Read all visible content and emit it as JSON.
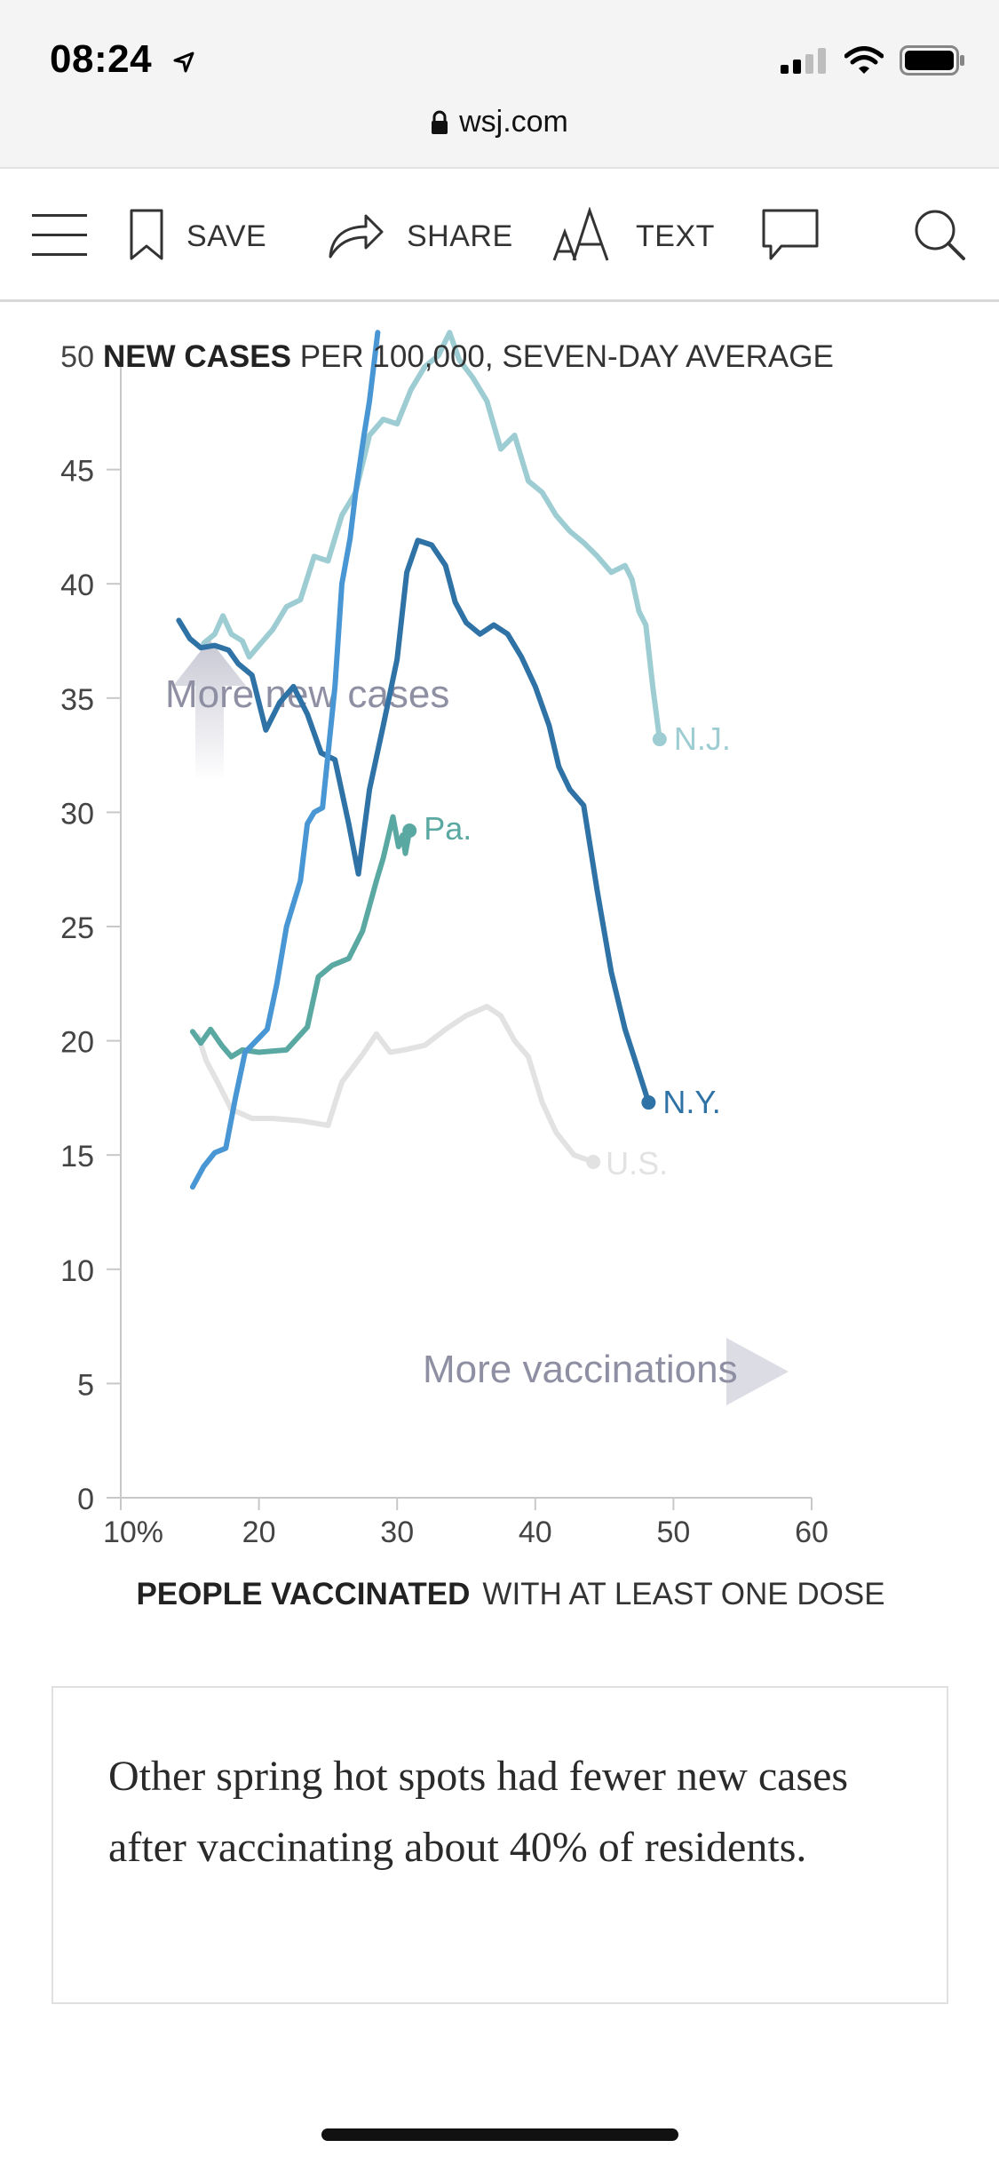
{
  "status_bar": {
    "time": "08:24",
    "icons": [
      "location-arrow-icon",
      "signal-icon",
      "wifi-icon",
      "battery-icon"
    ]
  },
  "url_bar": {
    "domain": "wsj.com",
    "icon": "lock-icon"
  },
  "toolbar": {
    "menu_icon": "hamburger-menu-icon",
    "save_label": "SAVE",
    "share_label": "SHARE",
    "text_label": "TEXT",
    "comment_icon": "comment-icon",
    "search_icon": "search-icon"
  },
  "chart_data": {
    "type": "line",
    "title_bold": "NEW CASES",
    "title_rest": " PER 100,000, SEVEN-DAY AVERAGE",
    "xlabel_bold": "PEOPLE VACCINATED",
    "xlabel_rest": "WITH AT LEAST ONE DOSE",
    "xlim": [
      10,
      60
    ],
    "ylim": [
      0,
      50
    ],
    "x_ticks": [
      "10%",
      "20",
      "30",
      "40",
      "50",
      "60"
    ],
    "x_tick_values": [
      10,
      20,
      30,
      40,
      50,
      60
    ],
    "y_ticks": [
      "0",
      "5",
      "10",
      "15",
      "20",
      "25",
      "30",
      "35",
      "40",
      "45",
      "50"
    ],
    "y_tick_values": [
      0,
      5,
      10,
      15,
      20,
      25,
      30,
      35,
      40,
      45,
      50
    ],
    "grid": false,
    "annotations": {
      "more_cases": "More new cases",
      "more_vaccinations": "More vaccinations"
    },
    "series": [
      {
        "name": "U.S.",
        "color": "#e2e2e2",
        "endpoint": true,
        "points": [
          [
            15.6,
            20.2
          ],
          [
            16.2,
            19.1
          ],
          [
            17,
            18.2
          ],
          [
            18,
            17.0
          ],
          [
            19.5,
            16.6
          ],
          [
            21,
            16.6
          ],
          [
            23,
            16.5
          ],
          [
            25,
            16.3
          ],
          [
            26,
            18.2
          ],
          [
            27.5,
            19.4
          ],
          [
            28.5,
            20.3
          ],
          [
            29.5,
            19.5
          ],
          [
            30.5,
            19.6
          ],
          [
            32,
            19.8
          ],
          [
            33.5,
            20.5
          ],
          [
            35,
            21.1
          ],
          [
            36.5,
            21.5
          ],
          [
            37.5,
            21.1
          ],
          [
            38.5,
            20.0
          ],
          [
            39.5,
            19.3
          ],
          [
            40.5,
            17.3
          ],
          [
            41.5,
            16.0
          ],
          [
            42.8,
            15.0
          ],
          [
            44.2,
            14.7
          ]
        ]
      },
      {
        "name": "Pa.",
        "color": "#5aa8a2",
        "endpoint": true,
        "points": [
          [
            15.2,
            20.4
          ],
          [
            15.8,
            19.9
          ],
          [
            16.5,
            20.5
          ],
          [
            17.3,
            19.8
          ],
          [
            18,
            19.3
          ],
          [
            18.8,
            19.6
          ],
          [
            20,
            19.5
          ],
          [
            22,
            19.6
          ],
          [
            23.5,
            20.6
          ],
          [
            24.3,
            22.8
          ],
          [
            25.3,
            23.3
          ],
          [
            26.5,
            23.6
          ],
          [
            27.5,
            24.8
          ],
          [
            28.5,
            27.0
          ],
          [
            29,
            28.0
          ],
          [
            29.7,
            29.8
          ],
          [
            30.1,
            28.5
          ],
          [
            30.4,
            29.0
          ],
          [
            30.6,
            28.2
          ],
          [
            30.9,
            29.2
          ]
        ]
      },
      {
        "name": "N.J.",
        "color": "#9dcdd3",
        "endpoint": true,
        "points": [
          [
            16,
            37.4
          ],
          [
            16.8,
            37.8
          ],
          [
            17.4,
            38.6
          ],
          [
            18,
            37.8
          ],
          [
            18.8,
            37.5
          ],
          [
            19.3,
            36.8
          ],
          [
            20,
            37.3
          ],
          [
            21,
            38.0
          ],
          [
            22,
            39.0
          ],
          [
            23,
            39.3
          ],
          [
            24,
            41.2
          ],
          [
            25,
            41.0
          ],
          [
            26,
            43.0
          ],
          [
            27,
            44.0
          ],
          [
            28,
            46.5
          ],
          [
            29,
            47.2
          ],
          [
            30,
            47.0
          ],
          [
            31,
            48.5
          ],
          [
            32,
            49.5
          ],
          [
            33,
            50.0
          ],
          [
            33.8,
            51.0
          ],
          [
            34.5,
            49.8
          ],
          [
            35.5,
            49.0
          ],
          [
            36.5,
            48.0
          ],
          [
            37.5,
            45.9
          ],
          [
            38.5,
            46.5
          ],
          [
            39.5,
            44.5
          ],
          [
            40.5,
            44.0
          ],
          [
            41.5,
            43.0
          ],
          [
            42.5,
            42.3
          ],
          [
            43.5,
            41.8
          ],
          [
            44.5,
            41.2
          ],
          [
            45.5,
            40.5
          ],
          [
            46.5,
            40.8
          ],
          [
            47,
            40.2
          ],
          [
            47.5,
            38.8
          ],
          [
            48,
            38.2
          ],
          [
            48.5,
            35.5
          ],
          [
            49,
            33.2
          ]
        ]
      },
      {
        "name": "N.Y.",
        "color": "#2f72a6",
        "endpoint": true,
        "points": [
          [
            14.2,
            38.4
          ],
          [
            15,
            37.6
          ],
          [
            15.8,
            37.2
          ],
          [
            16.8,
            37.3
          ],
          [
            17.8,
            37.1
          ],
          [
            18.5,
            36.5
          ],
          [
            19.5,
            36.0
          ],
          [
            20.5,
            33.6
          ],
          [
            21.5,
            34.8
          ],
          [
            22.5,
            35.5
          ],
          [
            23.5,
            34.3
          ],
          [
            24.5,
            32.6
          ],
          [
            25.5,
            32.3
          ],
          [
            26.5,
            29.5
          ],
          [
            27.2,
            27.3
          ],
          [
            28,
            31.0
          ],
          [
            29,
            33.8
          ],
          [
            30,
            36.7
          ],
          [
            30.7,
            40.5
          ],
          [
            31.5,
            41.9
          ],
          [
            32.5,
            41.7
          ],
          [
            33.5,
            40.8
          ],
          [
            34.2,
            39.2
          ],
          [
            35,
            38.3
          ],
          [
            36,
            37.8
          ],
          [
            37,
            38.2
          ],
          [
            38,
            37.8
          ],
          [
            39,
            36.8
          ],
          [
            40,
            35.5
          ],
          [
            41,
            33.8
          ],
          [
            41.7,
            32.0
          ],
          [
            42.5,
            31.0
          ],
          [
            43.5,
            30.3
          ],
          [
            44.5,
            26.5
          ],
          [
            45.5,
            23.0
          ],
          [
            46.5,
            20.5
          ],
          [
            47.3,
            19.0
          ],
          [
            48.2,
            17.3
          ]
        ]
      },
      {
        "name": "",
        "color": "#4896d3",
        "endpoint": false,
        "points": [
          [
            15.2,
            13.6
          ],
          [
            16,
            14.5
          ],
          [
            16.8,
            15.1
          ],
          [
            17.6,
            15.3
          ],
          [
            18.3,
            17.5
          ],
          [
            19,
            19.5
          ],
          [
            19.8,
            20.0
          ],
          [
            20.6,
            20.5
          ],
          [
            21.3,
            22.5
          ],
          [
            22,
            25.0
          ],
          [
            23,
            27.0
          ],
          [
            23.5,
            29.5
          ],
          [
            24,
            30.0
          ],
          [
            24.6,
            30.2
          ],
          [
            25.5,
            35.5
          ],
          [
            26,
            40.0
          ],
          [
            26.6,
            42.0
          ],
          [
            27,
            44.0
          ],
          [
            27.6,
            46.5
          ],
          [
            28,
            48.0
          ],
          [
            28.6,
            51.0
          ]
        ]
      }
    ]
  },
  "caption": "Other spring hot spots had fewer new cases after vaccinating about 40% of residents."
}
